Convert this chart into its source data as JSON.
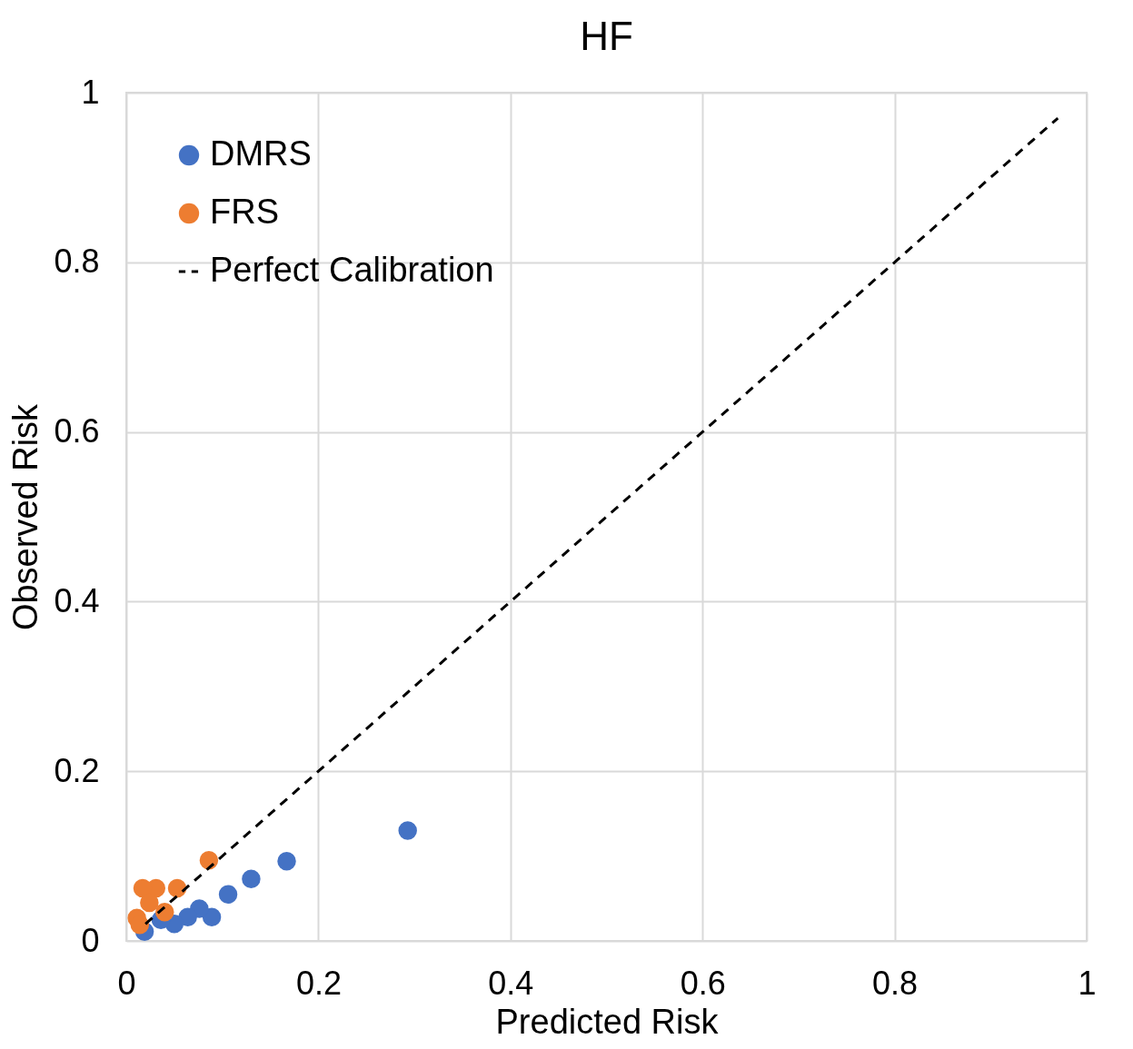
{
  "chart_data": {
    "type": "scatter",
    "title": "HF",
    "xlabel": "Predicted Risk",
    "ylabel": "Observed Risk",
    "xlim": [
      0,
      1
    ],
    "ylim": [
      0,
      1
    ],
    "xticks": [
      0,
      0.2,
      0.4,
      0.6,
      0.8,
      1
    ],
    "yticks": [
      0,
      0.2,
      0.4,
      0.6,
      0.8,
      1
    ],
    "grid": true,
    "legend": "top left",
    "series": [
      {
        "name": "DMRS",
        "type": "scatter",
        "color": "#4472c4",
        "marker": "circle",
        "x": [
          0.293,
          0.167,
          0.13,
          0.106,
          0.089,
          0.076,
          0.064,
          0.05,
          0.036,
          0.019
        ],
        "values": [
          0.13,
          0.094,
          0.073,
          0.055,
          0.028,
          0.038,
          0.028,
          0.02,
          0.025,
          0.011
        ]
      },
      {
        "name": "FRS",
        "type": "scatter",
        "color": "#ed7d31",
        "marker": "circle",
        "x": [
          0.086,
          0.053,
          0.031,
          0.017,
          0.024,
          0.04,
          0.011,
          0.014
        ],
        "values": [
          0.095,
          0.062,
          0.062,
          0.062,
          0.045,
          0.034,
          0.027,
          0.019
        ]
      },
      {
        "name": "Perfect Calibration",
        "type": "line",
        "color": "#000000",
        "marker": "none",
        "line_style": "dashed",
        "x": [
          0.02,
          0.97
        ],
        "values": [
          0.02,
          0.97
        ]
      }
    ]
  }
}
